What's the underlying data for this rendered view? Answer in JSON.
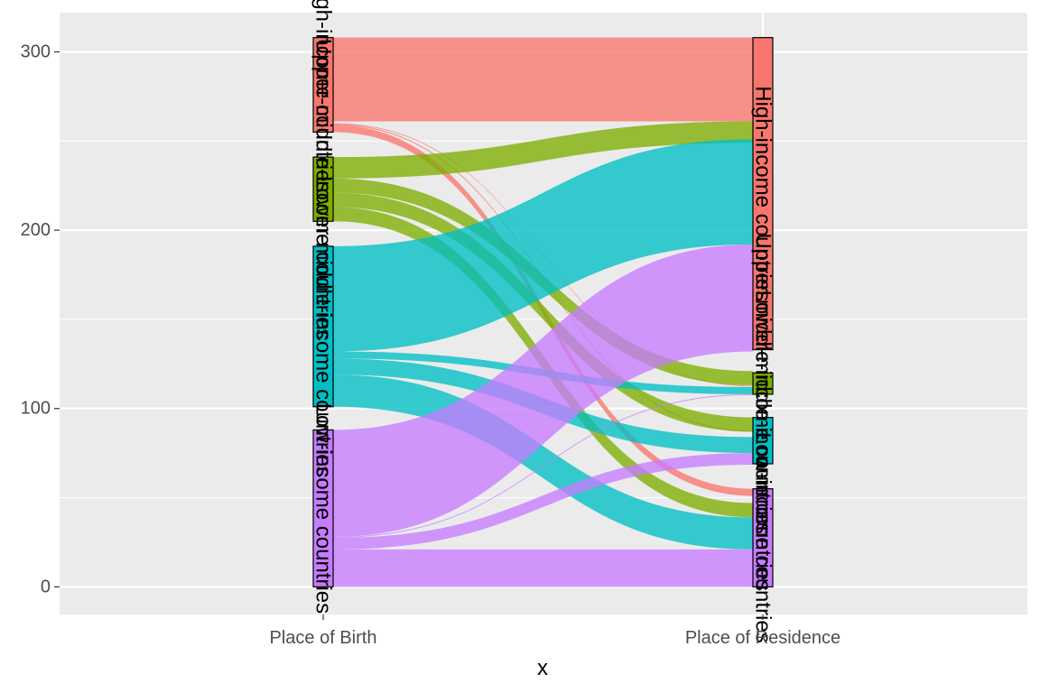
{
  "chart_data": {
    "type": "alluvial",
    "title": "",
    "xlabel": "x",
    "ylabel": "",
    "ylim": [
      -15.5,
      322
    ],
    "y_ticks": [
      0,
      100,
      200,
      300
    ],
    "grid": true,
    "legend": "none",
    "axes": [
      "Place of Birth",
      "Place of Residence"
    ],
    "categories": [
      "High-income countries",
      "Upper-middle-income countries",
      "Lower-middle-income countries",
      "Low-income countries"
    ],
    "colors": {
      "High-income countries": "#F8766D",
      "Upper-middle-income countries": "#7CAE00",
      "Lower-middle-income countries": "#00BFC4",
      "Low-income countries": "#C77CFF"
    },
    "strata": {
      "Place of Birth": [
        {
          "category": "High-income countries",
          "min": 255,
          "max": 308
        },
        {
          "category": "Upper-middle-income countries",
          "min": 205,
          "max": 241
        },
        {
          "category": "Lower-middle-income countries",
          "min": 101,
          "max": 191
        },
        {
          "category": "Low-income countries",
          "min": 0,
          "max": 88
        }
      ],
      "Place of Residence": [
        {
          "category": "High-income countries",
          "min": 133,
          "max": 308
        },
        {
          "category": "Upper-middle-income countries",
          "min": 108,
          "max": 120
        },
        {
          "category": "Lower-middle-income countries",
          "min": 69,
          "max": 95
        },
        {
          "category": "Low-income countries",
          "min": 0,
          "max": 55
        }
      ]
    },
    "flows": [
      {
        "from": "High-income countries",
        "to": "High-income countries",
        "y0": [
          261,
          308
        ],
        "y1": [
          261,
          308
        ]
      },
      {
        "from": "High-income countries",
        "to": "Upper-middle-income countries",
        "y0": [
          259.6,
          260.0
        ],
        "y1": [
          112.4,
          112.8
        ]
      },
      {
        "from": "High-income countries",
        "to": "Lower-middle-income countries",
        "y0": [
          259.0,
          259.6
        ],
        "y1": [
          87.0,
          87.6
        ]
      },
      {
        "from": "High-income countries",
        "to": "Low-income countries",
        "y0": [
          255,
          259
        ],
        "y1": [
          51,
          55
        ]
      },
      {
        "from": "Upper-middle-income countries",
        "to": "High-income countries",
        "y0": [
          229,
          241
        ],
        "y1": [
          249,
          261
        ]
      },
      {
        "from": "Upper-middle-income countries",
        "to": "Upper-middle-income countries",
        "y0": [
          221,
          229
        ],
        "y1": [
          113,
          121
        ]
      },
      {
        "from": "Upper-middle-income countries",
        "to": "Lower-middle-income countries",
        "y0": [
          213,
          221
        ],
        "y1": [
          87,
          95
        ]
      },
      {
        "from": "Upper-middle-income countries",
        "to": "Low-income countries",
        "y0": [
          205,
          213
        ],
        "y1": [
          39,
          47
        ]
      },
      {
        "from": "Lower-middle-income countries",
        "to": "High-income countries",
        "y0": [
          132,
          191
        ],
        "y1": [
          192,
          251
        ]
      },
      {
        "from": "Lower-middle-income countries",
        "to": "Upper-middle-income countries",
        "y0": [
          128,
          132
        ],
        "y1": [
          108,
          112
        ]
      },
      {
        "from": "Lower-middle-income countries",
        "to": "Lower-middle-income countries",
        "y0": [
          119,
          128
        ],
        "y1": [
          75,
          84
        ]
      },
      {
        "from": "Lower-middle-income countries",
        "to": "Low-income countries",
        "y0": [
          101,
          119
        ],
        "y1": [
          21,
          39
        ]
      },
      {
        "from": "Low-income countries",
        "to": "High-income countries",
        "y0": [
          28,
          88
        ],
        "y1": [
          132,
          192
        ]
      },
      {
        "from": "Low-income countries",
        "to": "Upper-middle-income countries",
        "y0": [
          27.5,
          28.0
        ],
        "y1": [
          107.5,
          108.0
        ]
      },
      {
        "from": "Low-income countries",
        "to": "Lower-middle-income countries",
        "y0": [
          21,
          27.5
        ],
        "y1": [
          68.5,
          75
        ]
      },
      {
        "from": "Low-income countries",
        "to": "Low-income countries",
        "y0": [
          0,
          21
        ],
        "y1": [
          0,
          21
        ]
      }
    ],
    "labels": {
      "Place of Birth": [
        "High-income countries",
        "Upper-middle-income countries",
        "Lower-middle-income countries",
        "Low-income countries"
      ],
      "Place of Residence": [
        "High-income countries",
        "Upper-middle-income countries",
        "Lower-middle-income countries",
        "Low-income countries"
      ]
    }
  }
}
